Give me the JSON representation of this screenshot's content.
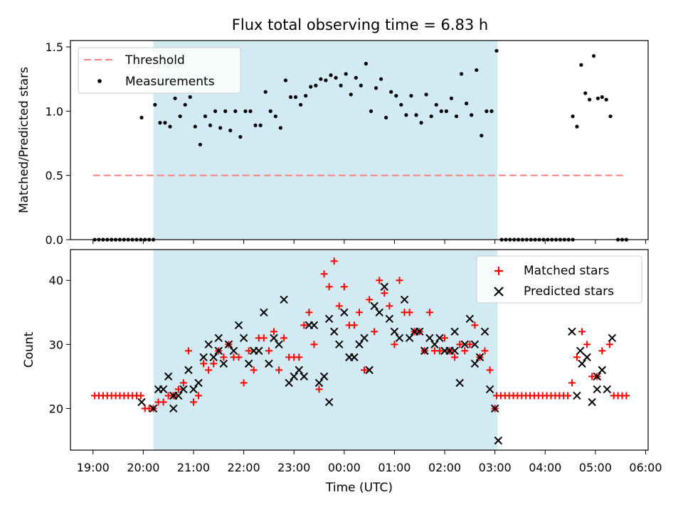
{
  "chart_data": [
    {
      "type": "scatter",
      "title": "Flux total observing time = 6.83 h",
      "xlabel": "",
      "ylabel": "Matched/Predicted stars",
      "xlim": [
        "18:33",
        "06:03"
      ],
      "ylim": [
        0,
        1.55
      ],
      "x_tick_labels": [],
      "y_ticks": [
        0.0,
        0.5,
        1.0,
        1.5
      ],
      "y_tick_labels": [
        "0.0",
        "0.5",
        "1.0",
        "1.5"
      ],
      "shaded_span": {
        "start": "20:12",
        "end": "03:03",
        "color": "#add8e6"
      },
      "legend": {
        "placement": "top-left",
        "entries": [
          "Threshold",
          "Measurements"
        ]
      },
      "series": [
        {
          "name": "Threshold",
          "kind": "dashed-line",
          "color": "#ff7f7f",
          "x": [
            "19:00",
            "05:35"
          ],
          "y": [
            0.5,
            0.5
          ]
        },
        {
          "name": "Measurements",
          "kind": "dot",
          "color": "#000000",
          "x": [
            "19:02",
            "19:07",
            "19:12",
            "19:17",
            "19:22",
            "19:27",
            "19:32",
            "19:37",
            "19:42",
            "19:47",
            "19:52",
            "19:57",
            "20:02",
            "20:07",
            "20:12",
            "19:58",
            "20:14",
            "20:20",
            "20:26",
            "20:32",
            "20:38",
            "20:44",
            "20:50",
            "20:56",
            "21:02",
            "21:08",
            "21:14",
            "21:20",
            "21:26",
            "21:32",
            "21:38",
            "21:44",
            "21:50",
            "21:56",
            "22:02",
            "22:08",
            "22:14",
            "22:20",
            "22:26",
            "22:32",
            "22:38",
            "22:44",
            "22:50",
            "22:56",
            "23:02",
            "23:08",
            "23:14",
            "23:20",
            "23:26",
            "23:32",
            "23:38",
            "23:44",
            "23:50",
            "23:56",
            "00:02",
            "00:08",
            "00:14",
            "00:20",
            "00:26",
            "00:32",
            "00:38",
            "00:44",
            "00:50",
            "00:56",
            "01:02",
            "01:08",
            "01:14",
            "01:20",
            "01:26",
            "01:32",
            "01:38",
            "01:44",
            "01:50",
            "01:56",
            "02:02",
            "02:08",
            "02:14",
            "02:20",
            "02:26",
            "02:32",
            "02:38",
            "02:44",
            "02:50",
            "02:56",
            "03:02",
            "03:08",
            "03:13",
            "03:18",
            "03:23",
            "03:28",
            "03:33",
            "03:38",
            "03:43",
            "03:48",
            "03:53",
            "03:58",
            "04:03",
            "04:08",
            "04:13",
            "04:18",
            "04:23",
            "04:28",
            "04:33",
            "04:33",
            "04:38",
            "04:43",
            "04:48",
            "04:53",
            "04:58",
            "05:03",
            "05:08",
            "05:13",
            "05:18",
            "05:27",
            "05:32",
            "05:37"
          ],
          "y": [
            0,
            0,
            0,
            0,
            0,
            0,
            0,
            0,
            0,
            0,
            0,
            0,
            0,
            0,
            0,
            0.95,
            1.05,
            0.91,
            0.91,
            0.88,
            1.1,
            0.96,
            1.05,
            1.11,
            0.88,
            0.74,
            0.96,
            0.89,
            1.0,
            0.87,
            1.0,
            0.85,
            1.0,
            0.8,
            1.0,
            1.0,
            0.89,
            0.89,
            1.15,
            1.0,
            0.96,
            0.87,
            1.24,
            1.11,
            1.11,
            1.05,
            1.12,
            1.19,
            1.2,
            1.25,
            1.24,
            1.28,
            1.26,
            1.2,
            1.29,
            1.13,
            1.26,
            1.2,
            1.37,
            1.0,
            1.18,
            1.25,
            0.95,
            1.15,
            1.12,
            1.05,
            0.97,
            1.12,
            0.97,
            0.91,
            1.13,
            0.96,
            1.05,
            1.0,
            1.0,
            1.1,
            0.96,
            1.29,
            1.06,
            0.97,
            1.32,
            0.81,
            1.0,
            1.0,
            1.47,
            0,
            0,
            0,
            0,
            0,
            0,
            0,
            0,
            0,
            0,
            0,
            0,
            0,
            0,
            0,
            0,
            0,
            0,
            0.96,
            0.88,
            1.36,
            1.14,
            1.09,
            1.43,
            1.1,
            1.11,
            1.09,
            0.96,
            0,
            0,
            0
          ]
        }
      ]
    },
    {
      "type": "scatter",
      "title": "",
      "xlabel": "Time (UTC)",
      "ylabel": "Count",
      "xlim": [
        "18:33",
        "06:03"
      ],
      "ylim": [
        13.5,
        44.8
      ],
      "x_tick_labels": [
        "19:00",
        "20:00",
        "21:00",
        "22:00",
        "23:00",
        "00:00",
        "01:00",
        "02:00",
        "03:00",
        "04:00",
        "05:00",
        "06:00"
      ],
      "y_ticks": [
        20,
        30,
        40
      ],
      "y_tick_labels": [
        "20",
        "30",
        "40"
      ],
      "shaded_span": {
        "start": "20:12",
        "end": "03:03",
        "color": "#add8e6"
      },
      "legend": {
        "placement": "top-right",
        "entries": [
          "Matched stars",
          "Predicted stars"
        ]
      },
      "series": [
        {
          "name": "Matched stars",
          "kind": "plus",
          "color": "#ff0000",
          "x": [
            "19:02",
            "19:07",
            "19:12",
            "19:17",
            "19:22",
            "19:27",
            "19:32",
            "19:37",
            "19:42",
            "19:47",
            "19:52",
            "19:57",
            "20:02",
            "20:07",
            "20:12",
            "20:18",
            "20:24",
            "20:30",
            "20:36",
            "20:42",
            "20:48",
            "20:54",
            "21:00",
            "21:06",
            "21:12",
            "21:18",
            "21:24",
            "21:30",
            "21:36",
            "21:42",
            "21:48",
            "21:54",
            "22:00",
            "22:06",
            "22:12",
            "22:18",
            "22:24",
            "22:30",
            "22:36",
            "22:42",
            "22:48",
            "22:54",
            "23:00",
            "23:06",
            "23:12",
            "23:18",
            "23:24",
            "23:30",
            "23:36",
            "23:42",
            "23:48",
            "23:54",
            "00:00",
            "00:06",
            "00:12",
            "00:18",
            "00:24",
            "00:30",
            "00:36",
            "00:42",
            "00:48",
            "00:54",
            "01:00",
            "01:06",
            "01:12",
            "01:18",
            "01:24",
            "01:30",
            "01:36",
            "01:42",
            "01:48",
            "01:54",
            "02:00",
            "02:06",
            "02:12",
            "02:18",
            "02:24",
            "02:30",
            "02:36",
            "02:42",
            "02:48",
            "02:54",
            "03:00",
            "03:02",
            "03:07",
            "03:12",
            "03:17",
            "03:22",
            "03:27",
            "03:32",
            "03:37",
            "03:42",
            "03:47",
            "03:52",
            "03:57",
            "04:02",
            "04:07",
            "04:12",
            "04:17",
            "04:22",
            "04:27",
            "04:32",
            "04:38",
            "04:44",
            "04:50",
            "04:56",
            "05:02",
            "05:08",
            "05:17",
            "05:22",
            "05:27",
            "05:32",
            "05:37"
          ],
          "y": [
            22,
            22,
            22,
            22,
            22,
            22,
            22,
            22,
            22,
            22,
            22,
            22,
            20,
            20,
            20,
            21,
            21,
            22,
            22,
            23,
            24,
            29,
            21,
            22,
            27,
            26,
            27,
            29,
            28,
            30,
            28,
            28,
            24,
            29,
            26,
            31,
            31,
            29,
            32,
            26,
            31,
            28,
            28,
            28,
            33,
            35,
            30,
            23,
            41,
            39,
            43,
            36,
            39,
            33,
            33,
            35,
            26,
            37,
            32,
            40,
            38,
            36,
            30,
            40,
            35,
            35,
            32,
            32,
            29,
            35,
            29,
            29,
            31,
            29,
            28,
            30,
            29,
            30,
            33,
            28,
            29,
            26,
            20,
            22,
            22,
            22,
            22,
            22,
            22,
            22,
            22,
            22,
            22,
            22,
            22,
            22,
            22,
            22,
            22,
            22,
            22,
            24,
            28,
            32,
            30,
            25,
            25,
            29,
            30,
            22,
            22,
            22,
            22
          ]
        },
        {
          "name": "Predicted stars",
          "kind": "x",
          "color": "#000000",
          "x": [
            "19:58",
            "20:12",
            "20:18",
            "20:24",
            "20:30",
            "20:36",
            "20:42",
            "20:48",
            "20:54",
            "21:00",
            "21:06",
            "21:12",
            "21:18",
            "21:24",
            "21:30",
            "21:36",
            "21:42",
            "21:48",
            "21:54",
            "22:00",
            "22:06",
            "22:12",
            "22:18",
            "22:24",
            "22:30",
            "22:36",
            "22:42",
            "22:48",
            "22:54",
            "23:00",
            "23:06",
            "23:12",
            "23:18",
            "23:24",
            "23:30",
            "23:36",
            "23:42",
            "23:48",
            "23:54",
            "00:00",
            "00:06",
            "00:12",
            "00:18",
            "00:24",
            "00:30",
            "00:36",
            "00:42",
            "00:48",
            "00:54",
            "01:00",
            "01:06",
            "01:12",
            "01:18",
            "01:24",
            "01:30",
            "01:36",
            "01:42",
            "01:48",
            "01:54",
            "02:00",
            "02:06",
            "02:12",
            "02:18",
            "02:24",
            "02:30",
            "02:36",
            "02:42",
            "02:48",
            "02:54",
            "03:00",
            "04:32",
            "04:38",
            "04:44",
            "04:50",
            "04:56",
            "05:02",
            "05:08",
            "05:14",
            "05:20",
            "20:36",
            "21:30",
            "23:42",
            "01:36",
            "02:12",
            "02:36",
            "03:04",
            "04:42",
            "05:02"
          ],
          "y": [
            21,
            20,
            23,
            23,
            25,
            20,
            22,
            23,
            26,
            23,
            24,
            28,
            30,
            28,
            31,
            27,
            30,
            29,
            33,
            31,
            27,
            29,
            29,
            35,
            27,
            31,
            30,
            37,
            24,
            25,
            26,
            25,
            33,
            33,
            24,
            25,
            21,
            32,
            30,
            35,
            28,
            28,
            30,
            31,
            26,
            36,
            35,
            39,
            34,
            32,
            31,
            37,
            31,
            32,
            32,
            29,
            31,
            30,
            31,
            29,
            29,
            29,
            24,
            30,
            34,
            30,
            28,
            32,
            23,
            20,
            32,
            22,
            27,
            28,
            21,
            23,
            26,
            23,
            31,
            22,
            29,
            34,
            29,
            32,
            27,
            15,
            29,
            25
          ]
        }
      ]
    }
  ]
}
